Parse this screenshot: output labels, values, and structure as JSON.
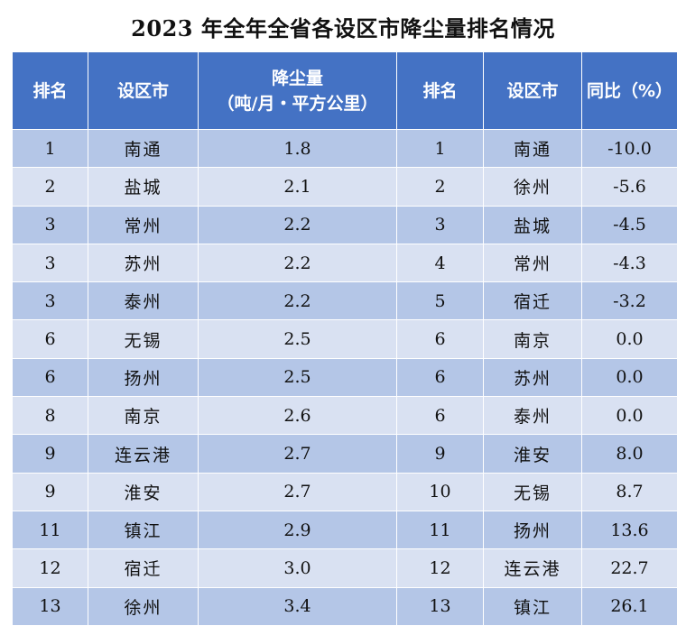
{
  "title": "2023 年全年全省各设区市降尘量排名情况",
  "headers": {
    "rank_left": "排名",
    "city_left": "设区市",
    "dust_line1": "降尘量",
    "dust_line2": "（吨/月・平方公里）",
    "rank_right": "排名",
    "city_right": "设区市",
    "yoy": "同比（%）"
  },
  "rows": [
    {
      "rank_a": "1",
      "city_a": "南通",
      "dust": "1.8",
      "rank_b": "1",
      "city_b": "南通",
      "yoy": "-10.0"
    },
    {
      "rank_a": "2",
      "city_a": "盐城",
      "dust": "2.1",
      "rank_b": "2",
      "city_b": "徐州",
      "yoy": "-5.6"
    },
    {
      "rank_a": "3",
      "city_a": "常州",
      "dust": "2.2",
      "rank_b": "3",
      "city_b": "盐城",
      "yoy": "-4.5"
    },
    {
      "rank_a": "3",
      "city_a": "苏州",
      "dust": "2.2",
      "rank_b": "4",
      "city_b": "常州",
      "yoy": "-4.3"
    },
    {
      "rank_a": "3",
      "city_a": "泰州",
      "dust": "2.2",
      "rank_b": "5",
      "city_b": "宿迁",
      "yoy": "-3.2"
    },
    {
      "rank_a": "6",
      "city_a": "无锡",
      "dust": "2.5",
      "rank_b": "6",
      "city_b": "南京",
      "yoy": "0.0"
    },
    {
      "rank_a": "6",
      "city_a": "扬州",
      "dust": "2.5",
      "rank_b": "6",
      "city_b": "苏州",
      "yoy": "0.0"
    },
    {
      "rank_a": "8",
      "city_a": "南京",
      "dust": "2.6",
      "rank_b": "6",
      "city_b": "泰州",
      "yoy": "0.0"
    },
    {
      "rank_a": "9",
      "city_a": "连云港",
      "dust": "2.7",
      "rank_b": "9",
      "city_b": "淮安",
      "yoy": "8.0"
    },
    {
      "rank_a": "9",
      "city_a": "淮安",
      "dust": "2.7",
      "rank_b": "10",
      "city_b": "无锡",
      "yoy": "8.7"
    },
    {
      "rank_a": "11",
      "city_a": "镇江",
      "dust": "2.9",
      "rank_b": "11",
      "city_b": "扬州",
      "yoy": "13.6"
    },
    {
      "rank_a": "12",
      "city_a": "宿迁",
      "dust": "3.0",
      "rank_b": "12",
      "city_b": "连云港",
      "yoy": "22.7"
    },
    {
      "rank_a": "13",
      "city_a": "徐州",
      "dust": "3.4",
      "rank_b": "13",
      "city_b": "镇江",
      "yoy": "26.1"
    }
  ],
  "colors": {
    "header_bg": "#4472c4",
    "row_dark": "#b4c6e7",
    "row_light": "#d9e1f2"
  }
}
